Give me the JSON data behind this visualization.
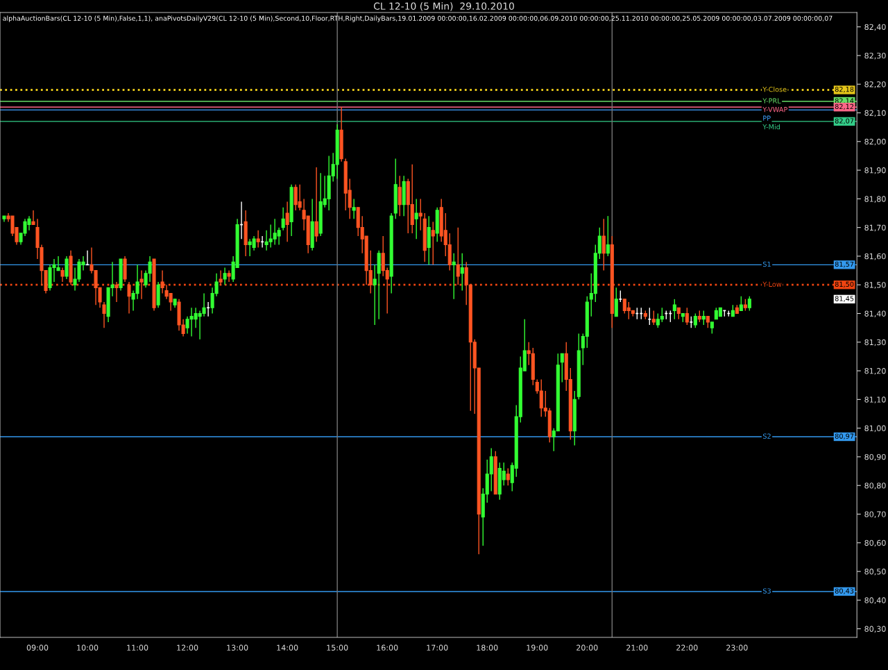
{
  "chart_data": {
    "type": "candlestick",
    "title": "CL 12-10 (5 Min)  29.10.2010",
    "annotations": [
      "alphaAuctionBars(CL 12-10 (5 Min),False,1,1), anaPivotsDailyV29(CL 12-10 (5 Min),Second,10,Floor,RTH,Right,DailyBars,19.01.2009 00:00:00,16.02.2009 00:00:00,06.09.2010 00:00:00,25.11.2010 00:00:00,25.05.2009 00:00:00,03.07.2009 00:00:00,07",
      {
        "text": "82,18",
        "y": 82.18
      },
      {
        "text": "82,14",
        "y": 82.14
      },
      {
        "text": "82,12",
        "y": 82.12
      },
      {
        "text": "82,07",
        "y": 82.07
      },
      {
        "text": "81,57",
        "y": 81.57
      },
      {
        "text": "81,50",
        "y": 81.5
      },
      {
        "text": "81,45",
        "y": 81.45
      },
      {
        "text": "80,97",
        "y": 80.97
      },
      {
        "text": "80,43",
        "y": 80.43
      }
    ],
    "x": [
      8.333,
      8.417,
      8.5,
      8.583,
      8.667,
      8.75,
      8.833,
      8.917,
      9,
      9.083,
      9.167,
      9.25,
      9.333,
      9.417,
      9.5,
      9.583,
      9.667,
      9.75,
      9.833,
      9.917,
      10,
      10.083,
      10.167,
      10.25,
      10.333,
      10.417,
      10.5,
      10.583,
      10.667,
      10.75,
      10.833,
      10.917,
      11,
      11.083,
      11.167,
      11.25,
      11.333,
      11.417,
      11.5,
      11.583,
      11.667,
      11.75,
      11.833,
      11.917,
      12,
      12.083,
      12.167,
      12.25,
      12.333,
      12.417,
      12.5,
      12.583,
      12.667,
      12.75,
      12.833,
      12.917,
      13,
      13.083,
      13.167,
      13.25,
      13.333,
      13.417,
      13.5,
      13.583,
      13.667,
      13.75,
      13.833,
      13.917,
      14,
      14.083,
      14.167,
      14.25,
      14.333,
      14.417,
      14.5,
      14.583,
      14.667,
      14.75,
      14.833,
      14.917,
      15,
      15.083,
      15.167,
      15.25,
      15.333,
      15.417,
      15.5,
      15.583,
      15.667,
      15.75,
      15.833,
      15.917,
      16,
      16.083,
      16.167,
      16.25,
      16.333,
      16.417,
      16.5,
      16.583,
      16.667,
      16.75,
      16.833,
      16.917,
      17,
      17.083,
      17.167,
      17.25,
      17.333,
      17.417,
      17.5,
      17.583,
      17.667,
      17.75,
      17.833,
      17.917,
      18,
      18.083,
      18.167,
      18.25,
      18.333,
      18.417,
      18.5,
      18.583,
      18.667,
      18.75,
      18.833,
      18.917,
      19,
      19.083,
      19.167,
      19.25,
      19.333,
      19.417,
      19.5,
      19.583,
      19.667,
      19.75,
      19.833,
      19.917,
      20,
      20.083,
      20.167,
      20.25,
      20.333,
      20.417,
      20.5,
      20.583,
      20.667,
      20.75,
      20.833,
      20.917,
      21,
      21.083,
      21.167,
      21.25,
      21.333,
      21.417,
      21.5,
      21.583,
      21.667,
      21.75,
      21.833,
      21.917,
      22,
      22.083,
      22.167,
      22.25,
      22.333,
      22.417,
      22.5,
      22.583,
      22.667,
      22.75,
      22.833,
      22.917,
      23,
      23.083,
      23.167,
      23.25
    ],
    "ohlc": [
      [
        81.73,
        81.74,
        81.72,
        81.74
      ],
      [
        81.74,
        81.75,
        81.72,
        81.73
      ],
      [
        81.74,
        81.74,
        81.67,
        81.68
      ],
      [
        81.7,
        81.7,
        81.64,
        81.65
      ],
      [
        81.65,
        81.68,
        81.64,
        81.68
      ],
      [
        81.68,
        81.73,
        81.67,
        81.72
      ],
      [
        81.71,
        81.74,
        81.69,
        81.73
      ],
      [
        81.72,
        81.76,
        81.71,
        81.71
      ],
      [
        81.7,
        81.73,
        81.59,
        81.63
      ],
      [
        81.63,
        81.64,
        81.5,
        81.55
      ],
      [
        81.55,
        81.55,
        81.47,
        81.48
      ],
      [
        81.49,
        81.57,
        81.48,
        81.56
      ],
      [
        81.56,
        81.59,
        81.51,
        81.57
      ],
      [
        81.55,
        81.6,
        81.55,
        81.56
      ],
      [
        81.55,
        81.56,
        81.51,
        81.53
      ],
      [
        81.53,
        81.6,
        81.52,
        81.59
      ],
      [
        81.6,
        81.62,
        81.5,
        81.51
      ],
      [
        81.5,
        81.56,
        81.48,
        81.52
      ],
      [
        81.52,
        81.59,
        81.51,
        81.58
      ],
      [
        81.57,
        81.6,
        81.55,
        81.58
      ],
      [
        81.57,
        81.62,
        81.57,
        81.57
      ],
      [
        81.57,
        81.63,
        81.54,
        81.55
      ],
      [
        81.55,
        81.55,
        81.43,
        81.49
      ],
      [
        81.49,
        81.49,
        81.42,
        81.44
      ],
      [
        81.43,
        81.44,
        81.35,
        81.4
      ],
      [
        81.39,
        81.49,
        81.37,
        81.49
      ],
      [
        81.49,
        81.58,
        81.46,
        81.5
      ],
      [
        81.5,
        81.51,
        81.44,
        81.49
      ],
      [
        81.49,
        81.59,
        81.48,
        81.59
      ],
      [
        81.59,
        81.6,
        81.51,
        81.52
      ],
      [
        81.5,
        81.51,
        81.4,
        81.46
      ],
      [
        81.45,
        81.48,
        81.41,
        81.47
      ],
      [
        81.47,
        81.57,
        81.45,
        81.51
      ],
      [
        81.52,
        81.55,
        81.45,
        81.51
      ],
      [
        81.5,
        81.55,
        81.49,
        81.54
      ],
      [
        81.54,
        81.6,
        81.51,
        81.58
      ],
      [
        81.59,
        81.59,
        81.41,
        81.42
      ],
      [
        81.43,
        81.51,
        81.42,
        81.5
      ],
      [
        81.51,
        81.55,
        81.47,
        81.49
      ],
      [
        81.48,
        81.5,
        81.45,
        81.46
      ],
      [
        81.47,
        81.47,
        81.41,
        81.44
      ],
      [
        81.43,
        81.45,
        81.42,
        81.45
      ],
      [
        81.44,
        81.45,
        81.34,
        81.36
      ],
      [
        81.36,
        81.38,
        81.32,
        81.33
      ],
      [
        81.35,
        81.39,
        81.33,
        81.38
      ],
      [
        81.38,
        81.42,
        81.32,
        81.39
      ],
      [
        81.38,
        81.42,
        81.35,
        81.4
      ],
      [
        81.39,
        81.41,
        81.31,
        81.4
      ],
      [
        81.4,
        81.47,
        81.39,
        81.42
      ],
      [
        81.42,
        81.44,
        81.39,
        81.42
      ],
      [
        81.42,
        81.49,
        81.4,
        81.47
      ],
      [
        81.47,
        81.54,
        81.46,
        81.51
      ],
      [
        81.52,
        81.55,
        81.5,
        81.51
      ],
      [
        81.52,
        81.56,
        81.5,
        81.54
      ],
      [
        81.54,
        81.55,
        81.51,
        81.53
      ],
      [
        81.52,
        81.6,
        81.51,
        81.58
      ],
      [
        81.56,
        81.73,
        81.56,
        81.71
      ],
      [
        81.71,
        81.79,
        81.66,
        81.71
      ],
      [
        81.72,
        81.76,
        81.6,
        81.64
      ],
      [
        81.64,
        81.66,
        81.6,
        81.65
      ],
      [
        81.63,
        81.67,
        81.62,
        81.66
      ],
      [
        81.66,
        81.69,
        81.63,
        81.65
      ],
      [
        81.65,
        81.67,
        81.63,
        81.65
      ],
      [
        81.64,
        81.69,
        81.62,
        81.65
      ],
      [
        81.65,
        81.71,
        81.63,
        81.66
      ],
      [
        81.66,
        81.73,
        81.64,
        81.68
      ],
      [
        81.67,
        81.7,
        81.64,
        81.69
      ],
      [
        81.7,
        81.77,
        81.69,
        81.73
      ],
      [
        81.75,
        81.79,
        81.65,
        81.71
      ],
      [
        81.72,
        81.85,
        81.67,
        81.84
      ],
      [
        81.84,
        81.85,
        81.76,
        81.78
      ],
      [
        81.79,
        81.85,
        81.76,
        81.77
      ],
      [
        81.76,
        81.8,
        81.69,
        81.73
      ],
      [
        81.74,
        81.74,
        81.61,
        81.64
      ],
      [
        81.63,
        81.8,
        81.62,
        81.72
      ],
      [
        81.72,
        81.91,
        81.65,
        81.67
      ],
      [
        81.68,
        81.89,
        81.67,
        81.79
      ],
      [
        81.78,
        81.88,
        81.77,
        81.8
      ],
      [
        81.8,
        81.95,
        81.76,
        81.88
      ],
      [
        81.88,
        81.96,
        81.86,
        81.92
      ],
      [
        81.92,
        82.06,
        81.87,
        82.04
      ],
      [
        82.04,
        82.12,
        81.93,
        81.94
      ],
      [
        81.93,
        81.94,
        81.76,
        81.82
      ],
      [
        81.83,
        81.87,
        81.73,
        81.77
      ],
      [
        81.76,
        81.8,
        81.73,
        81.77
      ],
      [
        81.77,
        81.77,
        81.67,
        81.7
      ],
      [
        81.7,
        81.74,
        81.61,
        81.66
      ],
      [
        81.67,
        81.67,
        81.5,
        81.55
      ],
      [
        81.55,
        81.62,
        81.47,
        81.5
      ],
      [
        81.5,
        81.57,
        81.36,
        81.52
      ],
      [
        81.54,
        81.62,
        81.38,
        81.61
      ],
      [
        81.61,
        81.67,
        81.53,
        81.55
      ],
      [
        81.55,
        81.56,
        81.4,
        81.52
      ],
      [
        81.53,
        81.75,
        81.47,
        81.74
      ],
      [
        81.75,
        81.94,
        81.73,
        81.85
      ],
      [
        81.84,
        81.88,
        81.74,
        81.78
      ],
      [
        81.78,
        81.88,
        81.74,
        81.86
      ],
      [
        81.86,
        81.87,
        81.68,
        81.78
      ],
      [
        81.78,
        81.92,
        81.68,
        81.71
      ],
      [
        81.73,
        81.8,
        81.66,
        81.75
      ],
      [
        81.75,
        81.8,
        81.69,
        81.74
      ],
      [
        81.73,
        81.75,
        81.58,
        81.62
      ],
      [
        81.63,
        81.74,
        81.57,
        81.7
      ],
      [
        81.69,
        81.72,
        81.57,
        81.67
      ],
      [
        81.68,
        81.77,
        81.65,
        81.76
      ],
      [
        81.77,
        81.8,
        81.65,
        81.67
      ],
      [
        81.69,
        81.75,
        81.6,
        81.64
      ],
      [
        81.64,
        81.68,
        81.55,
        81.57
      ],
      [
        81.57,
        81.61,
        81.45,
        81.58
      ],
      [
        81.57,
        81.7,
        81.5,
        81.53
      ],
      [
        81.54,
        81.61,
        81.48,
        81.56
      ],
      [
        81.56,
        81.58,
        81.43,
        81.5
      ],
      [
        81.5,
        81.5,
        81.06,
        81.3
      ],
      [
        81.3,
        81.31,
        81.05,
        81.21
      ],
      [
        81.21,
        81.21,
        80.56,
        80.7
      ],
      [
        80.69,
        80.79,
        80.59,
        80.77
      ],
      [
        80.77,
        80.89,
        80.74,
        80.84
      ],
      [
        80.84,
        80.93,
        80.78,
        80.9
      ],
      [
        80.9,
        80.92,
        80.77,
        80.77
      ],
      [
        80.77,
        80.88,
        80.75,
        80.86
      ],
      [
        80.82,
        80.88,
        80.8,
        80.85
      ],
      [
        80.84,
        80.86,
        80.8,
        80.82
      ],
      [
        80.81,
        80.88,
        80.78,
        80.87
      ],
      [
        80.86,
        81.08,
        80.83,
        81.04
      ],
      [
        81.04,
        81.25,
        81.02,
        81.21
      ],
      [
        81.2,
        81.38,
        81.2,
        81.27
      ],
      [
        81.27,
        81.3,
        81.22,
        81.26
      ],
      [
        81.26,
        81.28,
        81.15,
        81.17
      ],
      [
        81.16,
        81.17,
        81.12,
        81.13
      ],
      [
        81.13,
        81.17,
        81.04,
        81.07
      ],
      [
        81.07,
        81.13,
        81.04,
        81.06
      ],
      [
        81.06,
        81.07,
        80.95,
        80.97
      ],
      [
        80.97,
        81.0,
        80.92,
        80.99
      ],
      [
        80.99,
        81.26,
        80.99,
        81.22
      ],
      [
        81.23,
        81.26,
        81.16,
        81.26
      ],
      [
        81.26,
        81.3,
        81.13,
        81.17
      ],
      [
        81.17,
        81.21,
        80.96,
        80.99
      ],
      [
        80.99,
        81.13,
        80.94,
        81.1
      ],
      [
        81.11,
        81.33,
        81.1,
        81.27
      ],
      [
        81.28,
        81.33,
        81.22,
        81.32
      ],
      [
        81.32,
        81.46,
        81.28,
        81.44
      ],
      [
        81.45,
        81.54,
        81.39,
        81.47
      ],
      [
        81.47,
        81.64,
        81.44,
        81.61
      ],
      [
        81.61,
        81.7,
        81.59,
        81.67
      ],
      [
        81.67,
        81.73,
        81.55,
        81.61
      ],
      [
        81.61,
        81.74,
        81.6,
        81.64
      ],
      [
        81.64,
        81.67,
        81.35,
        81.4
      ],
      [
        81.39,
        81.49,
        81.39,
        81.45
      ],
      [
        81.45,
        81.48,
        81.44,
        81.45
      ],
      [
        81.45,
        81.45,
        81.4,
        81.41
      ],
      [
        81.42,
        81.44,
        81.38,
        81.41
      ],
      [
        81.41,
        81.41,
        81.39,
        81.4
      ],
      [
        81.4,
        81.42,
        81.38,
        81.4
      ],
      [
        81.4,
        81.42,
        81.38,
        81.4
      ],
      [
        81.4,
        81.41,
        81.38,
        81.39
      ],
      [
        81.38,
        81.42,
        81.36,
        81.38
      ],
      [
        81.38,
        81.41,
        81.36,
        81.37
      ],
      [
        81.36,
        81.4,
        81.35,
        81.38
      ],
      [
        81.38,
        81.42,
        81.37,
        81.39
      ],
      [
        81.4,
        81.41,
        81.38,
        81.4
      ],
      [
        81.4,
        81.41,
        81.37,
        81.4
      ],
      [
        81.41,
        81.45,
        81.38,
        81.43
      ],
      [
        81.42,
        81.42,
        81.38,
        81.4
      ],
      [
        81.39,
        81.4,
        81.37,
        81.4
      ],
      [
        81.4,
        81.42,
        81.36,
        81.37
      ],
      [
        81.37,
        81.39,
        81.35,
        81.37
      ],
      [
        81.36,
        81.4,
        81.35,
        81.39
      ],
      [
        81.39,
        81.41,
        81.37,
        81.38
      ],
      [
        81.38,
        81.41,
        81.36,
        81.39
      ],
      [
        81.39,
        81.39,
        81.35,
        81.37
      ],
      [
        81.35,
        81.37,
        81.33,
        81.37
      ],
      [
        81.38,
        81.42,
        81.38,
        81.41
      ],
      [
        81.39,
        81.42,
        81.39,
        81.42
      ],
      [
        81.41,
        81.41,
        81.39,
        81.41
      ],
      [
        81.4,
        81.41,
        81.39,
        81.4
      ],
      [
        81.39,
        81.43,
        81.39,
        81.41
      ],
      [
        81.42,
        81.43,
        81.4,
        81.4
      ],
      [
        81.41,
        81.46,
        81.41,
        81.43
      ],
      [
        81.43,
        81.45,
        81.41,
        81.42
      ],
      [
        81.42,
        81.46,
        81.41,
        81.45
      ]
    ],
    "colors": [
      "#33ff33",
      "#ff5522",
      "#ff5522",
      "#ff5522",
      "#33ff33",
      "#33ff33",
      "#33ff33",
      "#ff5522",
      "#ff5522",
      "#ff5522",
      "#ff5522",
      "#33ff33",
      "#33ff33",
      "#33ff33",
      "#ff5522",
      "#33ff33",
      "#ff5522",
      "#33ff33",
      "#33ff33",
      "#33ff33",
      "#ffffff",
      "#ff5522",
      "#ff5522",
      "#ff5522",
      "#ff5522",
      "#33ff33",
      "#33ff33",
      "#ff5522",
      "#33ff33",
      "#ff5522",
      "#ff5522",
      "#33ff33",
      "#33ff33",
      "#ff5522",
      "#33ff33",
      "#33ff33",
      "#ff5522",
      "#33ff33",
      "#ff5522",
      "#ff5522",
      "#ff5522",
      "#33ff33",
      "#ff5522",
      "#ff5522",
      "#33ff33",
      "#33ff33",
      "#33ff33",
      "#33ff33",
      "#33ff33",
      "#ffffff",
      "#33ff33",
      "#33ff33",
      "#ff5522",
      "#33ff33",
      "#ff5522",
      "#33ff33",
      "#33ff33",
      "#ffffff",
      "#ff5522",
      "#33ff33",
      "#33ff33",
      "#ff5522",
      "#ffffff",
      "#33ff33",
      "#33ff33",
      "#33ff33",
      "#33ff33",
      "#33ff33",
      "#ff5522",
      "#33ff33",
      "#ff5522",
      "#ff5522",
      "#ff5522",
      "#ff5522",
      "#33ff33",
      "#ff5522",
      "#33ff33",
      "#33ff33",
      "#33ff33",
      "#33ff33",
      "#33ff33",
      "#ff5522",
      "#ff5522",
      "#ff5522",
      "#33ff33",
      "#ff5522",
      "#ff5522",
      "#ff5522",
      "#ff5522",
      "#33ff33",
      "#33ff33",
      "#ff5522",
      "#ff5522",
      "#33ff33",
      "#33ff33",
      "#ff5522",
      "#33ff33",
      "#ff5522",
      "#ff5522",
      "#33ff33",
      "#ff5522",
      "#ff5522",
      "#33ff33",
      "#ff5522",
      "#33ff33",
      "#ff5522",
      "#ff5522",
      "#ff5522",
      "#33ff33",
      "#ff5522",
      "#33ff33",
      "#ff5522",
      "#ff5522",
      "#ff5522",
      "#ff5522",
      "#33ff33",
      "#33ff33",
      "#33ff33",
      "#ff5522",
      "#33ff33",
      "#33ff33",
      "#ff5522",
      "#33ff33",
      "#33ff33",
      "#33ff33",
      "#33ff33",
      "#ff5522",
      "#ff5522",
      "#ff5522",
      "#ff5522",
      "#ff5522",
      "#ff5522",
      "#33ff33",
      "#33ff33",
      "#33ff33",
      "#ff5522",
      "#ff5522",
      "#33ff33",
      "#33ff33",
      "#33ff33",
      "#33ff33",
      "#33ff33",
      "#33ff33",
      "#33ff33",
      "#ff5522",
      "#33ff33",
      "#ff5522",
      "#33ff33",
      "#ffffff",
      "#ff5522",
      "#ff5522",
      "#ff5522",
      "#ffffff",
      "#ffffff",
      "#ff5522",
      "#ffffff",
      "#ff5522",
      "#33ff33",
      "#33ff33",
      "#ffffff",
      "#ffffff",
      "#33ff33",
      "#ff5522",
      "#33ff33",
      "#ff5522",
      "#ffffff",
      "#33ff33",
      "#ff5522",
      "#33ff33",
      "#ff5522",
      "#33ff33",
      "#33ff33",
      "#33ff33",
      "#ffffff",
      "#ffffff",
      "#33ff33",
      "#ff5522",
      "#33ff33",
      "#ff5522",
      "#33ff33"
    ],
    "ref_lines": [
      {
        "axis": "y",
        "value": 82.18,
        "label": "Y-Close",
        "color": "#e6c619",
        "line_style": "dotted"
      },
      {
        "axis": "y",
        "value": 82.14,
        "label": "Y-PRL",
        "color": "#66dd66",
        "line_style": "solid"
      },
      {
        "axis": "y",
        "value": 82.11,
        "label": "PP",
        "color": "#3fa0ff",
        "line_style": "solid"
      },
      {
        "axis": "y",
        "value": 82.12,
        "label": "Y-VWAP",
        "color": "#ff6688",
        "line_style": "solid"
      },
      {
        "axis": "y",
        "value": 82.07,
        "label": "Y-Mid",
        "color": "#33cc88",
        "line_style": "solid"
      },
      {
        "axis": "y",
        "value": 81.57,
        "label": "S1",
        "color": "#3399ee",
        "line_style": "solid"
      },
      {
        "axis": "y",
        "value": 81.5,
        "label": "Y-Low",
        "color": "#ee4411",
        "line_style": "dotted"
      },
      {
        "axis": "y",
        "value": 80.97,
        "label": "S2",
        "color": "#3399ee",
        "line_style": "solid"
      },
      {
        "axis": "y",
        "value": 80.43,
        "label": "S3",
        "color": "#3399ee",
        "line_style": "solid"
      },
      {
        "axis": "x",
        "value": 15,
        "color": "#777777",
        "line_style": "solid"
      },
      {
        "axis": "x",
        "value": 20.5,
        "color": "#777777",
        "line_style": "solid"
      }
    ],
    "xlim": [
      8.25,
      25.4
    ],
    "ylim": [
      80.27,
      82.45
    ],
    "xticks": [
      {
        "value": 9,
        "label": "09:00"
      },
      {
        "value": 10,
        "label": "10:00"
      },
      {
        "value": 11,
        "label": "11:00"
      },
      {
        "value": 12,
        "label": "12:00"
      },
      {
        "value": 13,
        "label": "13:00"
      },
      {
        "value": 14,
        "label": "14:00"
      },
      {
        "value": 15,
        "label": "15:00"
      },
      {
        "value": 16,
        "label": "16:00"
      },
      {
        "value": 17,
        "label": "17:00"
      },
      {
        "value": 18,
        "label": "18:00"
      },
      {
        "value": 19,
        "label": "19:00"
      },
      {
        "value": 20,
        "label": "20:00"
      },
      {
        "value": 21,
        "label": "21:00"
      },
      {
        "value": 22,
        "label": "22:00"
      },
      {
        "value": 23,
        "label": "23:00"
      }
    ],
    "yticks": [
      {
        "value": 80.3,
        "label": "80,30"
      },
      {
        "value": 80.4,
        "label": "80,40"
      },
      {
        "value": 80.5,
        "label": "80,50"
      },
      {
        "value": 80.6,
        "label": "80,60"
      },
      {
        "value": 80.7,
        "label": "80,70"
      },
      {
        "value": 80.8,
        "label": "80,80"
      },
      {
        "value": 80.9,
        "label": "80,90"
      },
      {
        "value": 81.0,
        "label": "81,00"
      },
      {
        "value": 81.1,
        "label": "81,10"
      },
      {
        "value": 81.2,
        "label": "81,20"
      },
      {
        "value": 81.3,
        "label": "81,30"
      },
      {
        "value": 81.4,
        "label": "81,40"
      },
      {
        "value": 81.5,
        "label": "81,50"
      },
      {
        "value": 81.6,
        "label": "81,60"
      },
      {
        "value": 81.7,
        "label": "81,70"
      },
      {
        "value": 81.8,
        "label": "81,80"
      },
      {
        "value": 81.9,
        "label": "81,90"
      },
      {
        "value": 82.0,
        "label": "82,00"
      },
      {
        "value": 82.1,
        "label": "82,10"
      },
      {
        "value": 82.2,
        "label": "82,20"
      },
      {
        "value": 82.3,
        "label": "82,30"
      },
      {
        "value": 82.4,
        "label": "82,40"
      }
    ],
    "grid": false,
    "legend": false
  }
}
